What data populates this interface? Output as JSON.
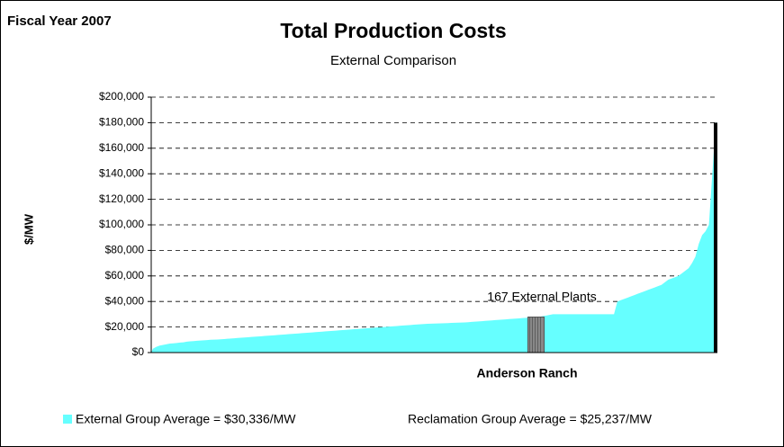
{
  "chart_data": {
    "type": "area",
    "title": "Total Production Costs",
    "subtitle": "External Comparison",
    "corner_label": "Fiscal Year 2007",
    "y_label": "$/MW",
    "annotation": "167 External Plants",
    "series": [
      {
        "name": "External Group Average = $30,336/MW",
        "color": "#66ffff",
        "values": [
          3000,
          4500,
          5500,
          6000,
          6500,
          7000,
          7200,
          7500,
          7800,
          8000,
          8500,
          8800,
          9000,
          9200,
          9400,
          9600,
          9800,
          10000,
          10100,
          10200,
          10400,
          10600,
          10800,
          11000,
          11200,
          11400,
          11600,
          11800,
          12000,
          12200,
          12400,
          12600,
          12800,
          13000,
          13200,
          13400,
          13600,
          13800,
          14000,
          14200,
          14400,
          14600,
          14800,
          15000,
          15200,
          15400,
          15600,
          15800,
          16000,
          16200,
          16400,
          16600,
          16800,
          17000,
          17200,
          17400,
          17600,
          17800,
          18000,
          18200,
          18400,
          18600,
          18800,
          19000,
          19200,
          19400,
          19600,
          19800,
          20000,
          20200,
          20400,
          20600,
          20800,
          21000,
          21200,
          21400,
          21600,
          21800,
          22000,
          22200,
          22400,
          22500,
          22600,
          22700,
          22800,
          22900,
          23000,
          23100,
          23200,
          23300,
          23400,
          23500,
          23600,
          23800,
          24000,
          24200,
          24400,
          24600,
          24800,
          25000,
          25200,
          25400,
          25600,
          25800,
          26000,
          26200,
          26400,
          26600,
          26800,
          27000,
          27200,
          27400,
          27600,
          27800,
          28000,
          28500,
          29000,
          29500,
          30000,
          30000,
          30000,
          30000,
          30000,
          30000,
          30000,
          30000,
          30000,
          30000,
          30000,
          30000,
          30000,
          30000,
          30000,
          30000,
          30000,
          30000,
          30000,
          40000,
          41000,
          42000,
          43000,
          44000,
          45000,
          46000,
          47000,
          48000,
          49000,
          50000,
          51000,
          52000,
          53000,
          55000,
          57000,
          58000,
          59000,
          60000,
          62000,
          64000,
          66000,
          70000,
          75000,
          85000,
          92000,
          95000,
          100000,
          140000,
          180000
        ]
      }
    ],
    "highlight": {
      "name": "Anderson Ranch",
      "index": 113,
      "value": 27800,
      "color": "#888888"
    },
    "note": "Reclamation Group Average = $25,237/MW",
    "ylim": [
      0,
      200000
    ],
    "yticks": [
      {
        "value": 0,
        "label": "$0"
      },
      {
        "value": 20000,
        "label": "$20,000"
      },
      {
        "value": 40000,
        "label": "$40,000"
      },
      {
        "value": 60000,
        "label": "$60,000"
      },
      {
        "value": 80000,
        "label": "$80,000"
      },
      {
        "value": 100000,
        "label": "$100,000"
      },
      {
        "value": 120000,
        "label": "$120,000"
      },
      {
        "value": 140000,
        "label": "$140,000"
      },
      {
        "value": 160000,
        "label": "$160,000"
      },
      {
        "value": 180000,
        "label": "$180,000"
      },
      {
        "value": 200000,
        "label": "$200,000"
      }
    ],
    "grid": true
  }
}
